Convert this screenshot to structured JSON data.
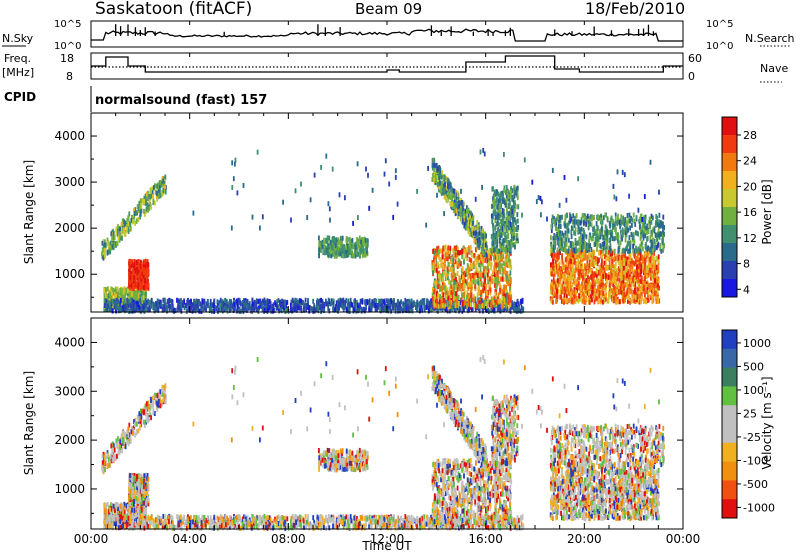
{
  "header": {
    "station": "Saskatoon (fitACF)",
    "beam": "Beam 09",
    "date": "18/Feb/2010"
  },
  "noise_panel": {
    "left_label": "N.Sky",
    "right_label": "N.Search",
    "left_ticks": [
      "10^5",
      "10^0"
    ],
    "right_ticks": [
      "10^5",
      "10^0"
    ]
  },
  "freq_panel": {
    "left_label_1": "Freq.",
    "left_label_2": "[MHz]",
    "left_ticks": [
      "18",
      "8"
    ],
    "right_ticks": [
      "60",
      "0"
    ],
    "right_label": "Nave"
  },
  "cpid": {
    "label": "CPID",
    "value": "normalsound (fast) 157"
  },
  "chart_data": [
    {
      "type": "heatmap",
      "parameter": "Power",
      "colorbar_label": "Power [dB]",
      "colorbar_ticks": [
        "28",
        "24",
        "20",
        "16",
        "12",
        "8",
        "4"
      ],
      "colorbar_colors": [
        "#e01010",
        "#f03a10",
        "#f07a10",
        "#f0b020",
        "#c8c830",
        "#70b040",
        "#409070",
        "#2a6a8a",
        "#2a40b0",
        "#1818e0"
      ],
      "ylabel": "Slant Range [km]",
      "yticks": [
        "4000",
        "3000",
        "2000",
        "1000"
      ],
      "ylim": [
        180,
        4500
      ],
      "xlim": [
        "00:00",
        "24:00"
      ]
    },
    {
      "type": "heatmap",
      "parameter": "Velocity",
      "colorbar_label": "Velocity [m s⁻¹]",
      "colorbar_ticks": [
        "1000",
        "500",
        "100",
        "25",
        "-25",
        "-100",
        "-500",
        "-1000"
      ],
      "colorbar_colors": [
        "#2040c0",
        "#3868a8",
        "#3a8060",
        "#60c040",
        "#c0c0c0",
        "#c0c0c0",
        "#f0b020",
        "#f09010",
        "#f05010",
        "#e01010"
      ],
      "ylabel": "Slant Range [km]",
      "yticks": [
        "4000",
        "3000",
        "2000",
        "1000"
      ],
      "ylim": [
        180,
        4500
      ],
      "xlabel": "Time UT",
      "xticks": [
        "00:00",
        "04:00",
        "08:00",
        "12:00",
        "16:00",
        "20:00",
        "00:00"
      ],
      "xlim": [
        "00:00",
        "24:00"
      ]
    }
  ]
}
